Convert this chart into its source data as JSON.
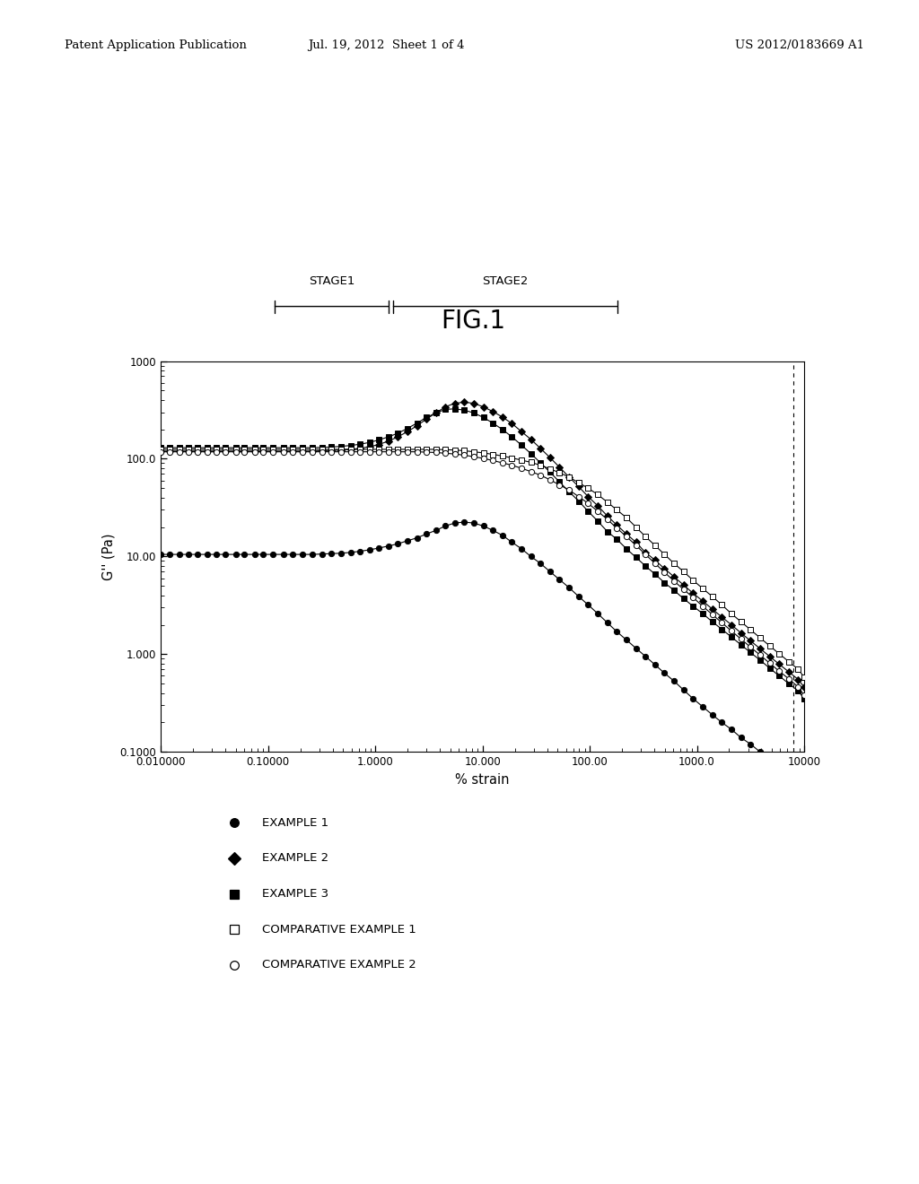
{
  "title": "FIG.1",
  "xlabel": "% strain",
  "ylabel": "G'' (Pa)",
  "header_left": "Patent Application Publication",
  "header_center": "Jul. 19, 2012  Sheet 1 of 4",
  "header_right": "US 2012/0183669 A1",
  "stage1_label": "STAGE1",
  "stage2_label": "STAGE2",
  "vline_x": 8000,
  "legend_entries": [
    {
      "label": "EXAMPLE 1",
      "marker": "o",
      "filled": true
    },
    {
      "label": "EXAMPLE 2",
      "marker": "D",
      "filled": true
    },
    {
      "label": "EXAMPLE 3",
      "marker": "s",
      "filled": true
    },
    {
      "label": "COMPARATIVE EXAMPLE 1",
      "marker": "s",
      "filled": false
    },
    {
      "label": "COMPARATIVE EXAMPLE 2",
      "marker": "o",
      "filled": false
    }
  ],
  "xlim": [
    0.01,
    10000
  ],
  "ylim": [
    0.1,
    1000
  ],
  "xtick_vals": [
    0.01,
    0.1,
    1.0,
    10.0,
    100.0,
    1000.0,
    10000
  ],
  "xtick_labels": [
    "0.010000",
    "0.10000",
    "1.0000",
    "10.000",
    "100.00",
    "1000.0",
    "10000"
  ],
  "ytick_vals": [
    0.1,
    1.0,
    10.0,
    100.0,
    1000.0
  ],
  "ytick_labels": [
    "0.1000",
    "1.000",
    "10.00",
    "100.0",
    "1000"
  ],
  "series": {
    "example1": {
      "x": [
        0.01,
        0.012,
        0.015,
        0.018,
        0.022,
        0.027,
        0.033,
        0.04,
        0.05,
        0.06,
        0.075,
        0.09,
        0.11,
        0.14,
        0.17,
        0.21,
        0.26,
        0.32,
        0.39,
        0.48,
        0.59,
        0.72,
        0.88,
        1.08,
        1.33,
        1.63,
        2.0,
        2.45,
        3.0,
        3.68,
        4.5,
        5.5,
        6.75,
        8.3,
        10.2,
        12.5,
        15.3,
        18.8,
        23.1,
        28.3,
        34.7,
        42.6,
        52.3,
        64.2,
        78.8,
        96.7,
        119,
        146,
        179,
        220,
        270,
        331,
        406,
        498,
        612,
        751,
        922,
        1132,
        1390,
        1707,
        2096,
        2573,
        3160,
        3880,
        4762,
        5849,
        7180,
        8815,
        10000
      ],
      "y": [
        10.5,
        10.5,
        10.5,
        10.5,
        10.5,
        10.5,
        10.5,
        10.5,
        10.5,
        10.5,
        10.5,
        10.5,
        10.5,
        10.5,
        10.5,
        10.5,
        10.5,
        10.6,
        10.7,
        10.8,
        11.0,
        11.3,
        11.7,
        12.2,
        12.8,
        13.5,
        14.5,
        15.5,
        17.0,
        18.5,
        20.5,
        22.0,
        22.5,
        22.0,
        20.5,
        18.5,
        16.5,
        14.0,
        12.0,
        10.0,
        8.5,
        7.0,
        5.8,
        4.8,
        3.9,
        3.2,
        2.6,
        2.1,
        1.7,
        1.4,
        1.15,
        0.95,
        0.78,
        0.64,
        0.53,
        0.43,
        0.35,
        0.29,
        0.24,
        0.2,
        0.17,
        0.14,
        0.12,
        0.1,
        0.085,
        0.072,
        0.062,
        0.054,
        0.047
      ]
    },
    "example2": {
      "x": [
        0.01,
        0.012,
        0.015,
        0.018,
        0.022,
        0.027,
        0.033,
        0.04,
        0.05,
        0.06,
        0.075,
        0.09,
        0.11,
        0.14,
        0.17,
        0.21,
        0.26,
        0.32,
        0.39,
        0.48,
        0.59,
        0.72,
        0.88,
        1.08,
        1.33,
        1.63,
        2.0,
        2.45,
        3.0,
        3.68,
        4.5,
        5.5,
        6.75,
        8.3,
        10.2,
        12.5,
        15.3,
        18.8,
        23.1,
        28.3,
        34.7,
        42.6,
        52.3,
        64.2,
        78.8,
        96.7,
        119,
        146,
        179,
        220,
        270,
        331,
        406,
        498,
        612,
        751,
        922,
        1132,
        1390,
        1707,
        2096,
        2573,
        3160,
        3880,
        4762,
        5849,
        7180,
        8815,
        10000
      ],
      "y": [
        120,
        120,
        120,
        120,
        120,
        120,
        120,
        120,
        120,
        120,
        120,
        120,
        120,
        120,
        120,
        120,
        120,
        121,
        122,
        123,
        125,
        128,
        133,
        140,
        152,
        168,
        190,
        218,
        255,
        295,
        340,
        370,
        380,
        370,
        340,
        305,
        268,
        230,
        190,
        158,
        128,
        103,
        82,
        65,
        52,
        41,
        33,
        26,
        21,
        17,
        14,
        11,
        9.2,
        7.5,
        6.2,
        5.1,
        4.2,
        3.5,
        2.9,
        2.4,
        2.0,
        1.65,
        1.37,
        1.14,
        0.95,
        0.79,
        0.66,
        0.55,
        0.46
      ]
    },
    "example3": {
      "x": [
        0.01,
        0.012,
        0.015,
        0.018,
        0.022,
        0.027,
        0.033,
        0.04,
        0.05,
        0.06,
        0.075,
        0.09,
        0.11,
        0.14,
        0.17,
        0.21,
        0.26,
        0.32,
        0.39,
        0.48,
        0.59,
        0.72,
        0.88,
        1.08,
        1.33,
        1.63,
        2.0,
        2.45,
        3.0,
        3.68,
        4.5,
        5.5,
        6.75,
        8.3,
        10.2,
        12.5,
        15.3,
        18.8,
        23.1,
        28.3,
        34.7,
        42.6,
        52.3,
        64.2,
        78.8,
        96.7,
        119,
        146,
        179,
        220,
        270,
        331,
        406,
        498,
        612,
        751,
        922,
        1132,
        1390,
        1707,
        2096,
        2573,
        3160,
        3880,
        4762,
        5849,
        7180,
        8815,
        10000
      ],
      "y": [
        130,
        130,
        130,
        130,
        130,
        130,
        130,
        130,
        130,
        130,
        130,
        130,
        130,
        130,
        130,
        130,
        130,
        131,
        132,
        134,
        137,
        141,
        147,
        156,
        168,
        183,
        205,
        232,
        265,
        295,
        320,
        325,
        315,
        295,
        265,
        232,
        200,
        168,
        138,
        113,
        91,
        73,
        58,
        46,
        37,
        29,
        23,
        18,
        15,
        12,
        9.8,
        8.0,
        6.6,
        5.4,
        4.5,
        3.7,
        3.1,
        2.6,
        2.15,
        1.8,
        1.5,
        1.25,
        1.04,
        0.87,
        0.72,
        0.6,
        0.5,
        0.42,
        0.35
      ]
    },
    "comp_example1": {
      "x": [
        0.01,
        0.012,
        0.015,
        0.018,
        0.022,
        0.027,
        0.033,
        0.04,
        0.05,
        0.06,
        0.075,
        0.09,
        0.11,
        0.14,
        0.17,
        0.21,
        0.26,
        0.32,
        0.39,
        0.48,
        0.59,
        0.72,
        0.88,
        1.08,
        1.33,
        1.63,
        2.0,
        2.45,
        3.0,
        3.68,
        4.5,
        5.5,
        6.75,
        8.3,
        10.2,
        12.5,
        15.3,
        18.8,
        23.1,
        28.3,
        34.7,
        42.6,
        52.3,
        64.2,
        78.8,
        96.7,
        119,
        146,
        179,
        220,
        270,
        331,
        406,
        498,
        612,
        751,
        922,
        1132,
        1390,
        1707,
        2096,
        2573,
        3160,
        3880,
        4762,
        5849,
        7180,
        8815,
        10000
      ],
      "y": [
        125,
        125,
        125,
        125,
        125,
        125,
        125,
        125,
        125,
        125,
        125,
        125,
        125,
        125,
        125,
        125,
        125,
        125,
        125,
        125,
        125,
        125,
        125,
        125,
        125,
        125,
        125,
        125,
        125,
        125,
        124,
        123,
        121,
        118,
        115,
        111,
        107,
        102,
        97,
        92,
        86,
        79,
        72,
        65,
        57,
        50,
        43,
        36,
        30,
        25,
        20,
        16,
        13,
        10.5,
        8.5,
        7.0,
        5.7,
        4.7,
        3.9,
        3.2,
        2.6,
        2.15,
        1.78,
        1.47,
        1.22,
        1.01,
        0.84,
        0.7,
        0.58
      ]
    },
    "comp_example2": {
      "x": [
        0.01,
        0.012,
        0.015,
        0.018,
        0.022,
        0.027,
        0.033,
        0.04,
        0.05,
        0.06,
        0.075,
        0.09,
        0.11,
        0.14,
        0.17,
        0.21,
        0.26,
        0.32,
        0.39,
        0.48,
        0.59,
        0.72,
        0.88,
        1.08,
        1.33,
        1.63,
        2.0,
        2.45,
        3.0,
        3.68,
        4.5,
        5.5,
        6.75,
        8.3,
        10.2,
        12.5,
        15.3,
        18.8,
        23.1,
        28.3,
        34.7,
        42.6,
        52.3,
        64.2,
        78.8,
        96.7,
        119,
        146,
        179,
        220,
        270,
        331,
        406,
        498,
        612,
        751,
        922,
        1132,
        1390,
        1707,
        2096,
        2573,
        3160,
        3880,
        4762,
        5849,
        7180,
        8815,
        10000
      ],
      "y": [
        118,
        118,
        118,
        118,
        118,
        118,
        118,
        118,
        118,
        118,
        118,
        118,
        118,
        118,
        118,
        118,
        118,
        118,
        118,
        118,
        118,
        118,
        118,
        118,
        118,
        118,
        118,
        118,
        117,
        116,
        114,
        112,
        109,
        105,
        101,
        96,
        91,
        86,
        80,
        74,
        68,
        61,
        54,
        48,
        41,
        35,
        29,
        24,
        19.5,
        16,
        13,
        10.5,
        8.5,
        6.9,
        5.6,
        4.6,
        3.8,
        3.1,
        2.55,
        2.1,
        1.73,
        1.43,
        1.18,
        0.98,
        0.81,
        0.67,
        0.56,
        0.46,
        0.38
      ]
    }
  }
}
